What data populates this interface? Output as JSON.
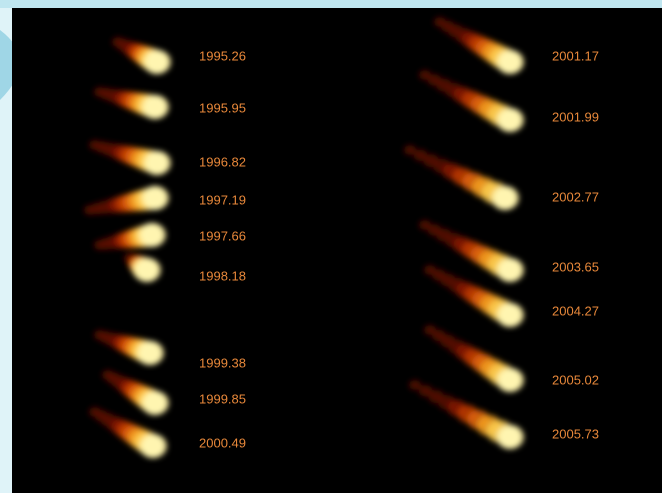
{
  "left_epochs": [
    "1995.26",
    "1995.95",
    "1996.82",
    "1997.19",
    "1997.66",
    "1998.18",
    "1999.38",
    "1999.85",
    "2000.49"
  ],
  "right_epochs": [
    "2001.17",
    "2001.99",
    "2002.77",
    "2003.65",
    "2004.27",
    "2005.02",
    "2005.73"
  ]
}
